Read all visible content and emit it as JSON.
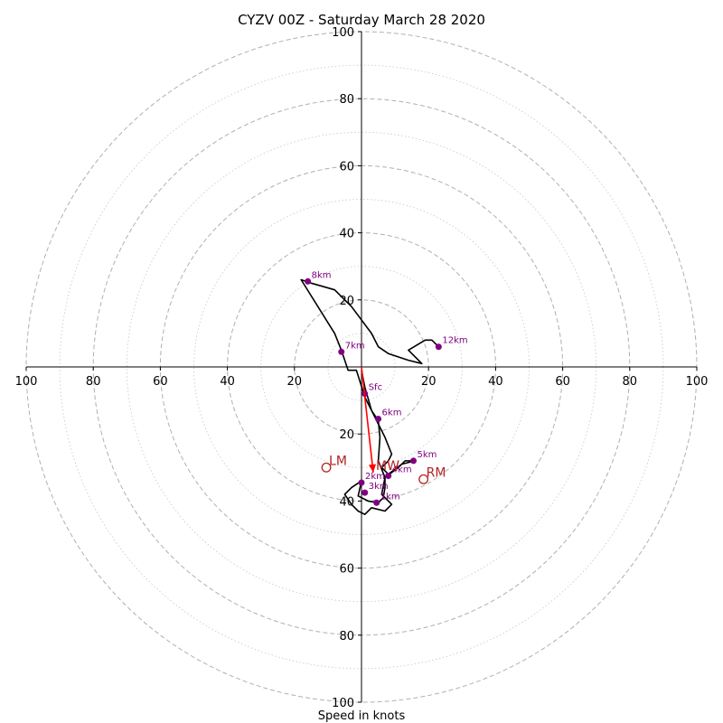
{
  "chart_data": {
    "type": "hodograph",
    "title": "CYZV 00Z - Saturday March 28 2020",
    "xlabel": "Speed in knots",
    "ring_labels": [
      "20",
      "40",
      "60",
      "80",
      "100"
    ],
    "x_tick_labels": [
      "100",
      "80",
      "60",
      "40",
      "20",
      "20",
      "40",
      "60",
      "80",
      "100"
    ],
    "y_tick_labels_top": [
      "100",
      "80",
      "60",
      "40",
      "20"
    ],
    "y_tick_labels_bottom": [
      "20",
      "40",
      "60",
      "80",
      "100"
    ],
    "range_knots": 100,
    "major_ring_step": 20,
    "minor_ring_step": 10,
    "colors": {
      "trace": "#000000",
      "height_points": "#800080",
      "motion_markers": "#b22222",
      "mean_wind_arrow": "#ff0000",
      "grid": "#b0b0b0",
      "minor_grid": "#cccccc"
    },
    "trace": [
      [
        0,
        -1
      ],
      [
        1,
        -6
      ],
      [
        3,
        -13
      ],
      [
        5,
        -17
      ],
      [
        7,
        -21
      ],
      [
        9,
        -26
      ],
      [
        8,
        -28
      ],
      [
        6,
        -30
      ],
      [
        8,
        -32
      ],
      [
        12,
        -29
      ],
      [
        16,
        -28
      ],
      [
        13,
        -28
      ],
      [
        11,
        -30
      ],
      [
        7,
        -33
      ],
      [
        7,
        -36
      ],
      [
        6.5,
        -39
      ],
      [
        5,
        -40.5
      ],
      [
        2,
        -40
      ],
      [
        -1,
        -38.5
      ],
      [
        0,
        -34
      ],
      [
        -3,
        -36
      ],
      [
        -5,
        -38
      ],
      [
        -3,
        -41
      ],
      [
        -1,
        -43
      ],
      [
        1,
        -44
      ],
      [
        3,
        -42
      ],
      [
        7,
        -43
      ],
      [
        9,
        -41
      ],
      [
        6,
        -38
      ],
      [
        7,
        -33
      ],
      [
        5,
        -28
      ],
      [
        5.5,
        -21
      ],
      [
        5,
        -16
      ],
      [
        3,
        -13
      ],
      [
        1,
        -9
      ],
      [
        -1.5,
        -1
      ],
      [
        -4,
        -1
      ],
      [
        -6,
        5
      ],
      [
        -8,
        10
      ],
      [
        -18,
        26
      ],
      [
        -15,
        25
      ],
      [
        -8,
        23
      ],
      [
        -3,
        18
      ],
      [
        3,
        10
      ],
      [
        5,
        6
      ],
      [
        8,
        4
      ],
      [
        14,
        2
      ],
      [
        18,
        1
      ],
      [
        14,
        5
      ],
      [
        19,
        8
      ],
      [
        21,
        8
      ],
      [
        23,
        6
      ]
    ],
    "height_points": [
      {
        "label": "Sfc",
        "u": 1,
        "v": -8
      },
      {
        "label": "1km",
        "u": 4.5,
        "v": -40.5
      },
      {
        "label": "2km",
        "u": 0,
        "v": -34.5
      },
      {
        "label": "3km",
        "u": 1,
        "v": -37.5
      },
      {
        "label": "4km",
        "u": 8,
        "v": -32.5
      },
      {
        "label": "5km",
        "u": 15.5,
        "v": -28
      },
      {
        "label": "6km",
        "u": 5,
        "v": -15.5
      },
      {
        "label": "7km",
        "u": -6,
        "v": 4.5
      },
      {
        "label": "8km",
        "u": -16,
        "v": 25.5
      },
      {
        "label": "12km",
        "u": 23,
        "v": 6
      }
    ],
    "motion_markers": [
      {
        "label": "LM",
        "u": -10.5,
        "v": -30
      },
      {
        "label": "RM",
        "u": 18.5,
        "v": -33.5
      },
      {
        "label": "MW",
        "u": 3.5,
        "v": -31.5
      }
    ],
    "mean_wind_vector": {
      "u": 3.5,
      "v": -31.5
    }
  }
}
